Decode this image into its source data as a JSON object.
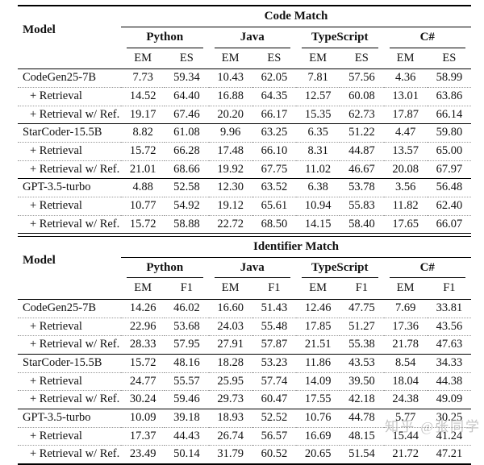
{
  "page": {
    "background": "#ffffff",
    "text_color": "#111111",
    "rule_color": "#000000",
    "dotted_rule_color": "#9a9a9a",
    "watermark_color": "#bcbcbc"
  },
  "watermark": "知乎 @张同学",
  "tables": [
    {
      "id": "code-match",
      "title": "Code Match",
      "model_header": "Model",
      "languages": [
        "Python",
        "Java",
        "TypeScript",
        "C#"
      ],
      "metrics": [
        "EM",
        "ES"
      ],
      "groups": [
        {
          "rows": [
            {
              "model": "CodeGen25-7B",
              "values": [
                "7.73",
                "59.34",
                "10.43",
                "62.05",
                "7.81",
                "57.56",
                "4.36",
                "58.99"
              ]
            },
            {
              "model": "+ Retrieval",
              "values": [
                "14.52",
                "64.40",
                "16.88",
                "64.35",
                "12.57",
                "60.08",
                "13.01",
                "63.86"
              ]
            },
            {
              "model": "+ Retrieval w/ Ref.",
              "values": [
                "19.17",
                "67.46",
                "20.20",
                "66.17",
                "15.35",
                "62.73",
                "17.87",
                "66.14"
              ]
            }
          ]
        },
        {
          "rows": [
            {
              "model": "StarCoder-15.5B",
              "values": [
                "8.82",
                "61.08",
                "9.96",
                "63.25",
                "6.35",
                "51.22",
                "4.47",
                "59.80"
              ]
            },
            {
              "model": "+ Retrieval",
              "values": [
                "15.72",
                "66.28",
                "17.48",
                "66.10",
                "8.31",
                "44.87",
                "13.57",
                "65.00"
              ]
            },
            {
              "model": "+ Retrieval w/ Ref.",
              "values": [
                "21.01",
                "68.66",
                "19.92",
                "67.75",
                "11.02",
                "46.67",
                "20.08",
                "67.97"
              ]
            }
          ]
        },
        {
          "rows": [
            {
              "model": "GPT-3.5-turbo",
              "values": [
                "4.88",
                "52.58",
                "12.30",
                "63.52",
                "6.38",
                "53.78",
                "3.56",
                "56.48"
              ]
            },
            {
              "model": "+ Retrieval",
              "values": [
                "10.77",
                "54.92",
                "19.12",
                "65.61",
                "10.94",
                "55.83",
                "11.82",
                "62.40"
              ]
            },
            {
              "model": "+ Retrieval w/ Ref.",
              "values": [
                "15.72",
                "58.88",
                "22.72",
                "68.50",
                "14.15",
                "58.40",
                "17.65",
                "66.07"
              ]
            }
          ]
        }
      ]
    },
    {
      "id": "identifier-match",
      "title": "Identifier Match",
      "model_header": "Model",
      "languages": [
        "Python",
        "Java",
        "TypeScript",
        "C#"
      ],
      "metrics": [
        "EM",
        "F1"
      ],
      "groups": [
        {
          "rows": [
            {
              "model": "CodeGen25-7B",
              "values": [
                "14.26",
                "46.02",
                "16.60",
                "51.43",
                "12.46",
                "47.75",
                "7.69",
                "33.81"
              ]
            },
            {
              "model": "+ Retrieval",
              "values": [
                "22.96",
                "53.68",
                "24.03",
                "55.48",
                "17.85",
                "51.27",
                "17.36",
                "43.56"
              ]
            },
            {
              "model": "+ Retrieval w/ Ref.",
              "values": [
                "28.33",
                "57.95",
                "27.91",
                "57.87",
                "21.51",
                "55.38",
                "21.78",
                "47.63"
              ]
            }
          ]
        },
        {
          "rows": [
            {
              "model": "StarCoder-15.5B",
              "values": [
                "15.72",
                "48.16",
                "18.28",
                "53.23",
                "11.86",
                "43.53",
                "8.54",
                "34.33"
              ]
            },
            {
              "model": "+ Retrieval",
              "values": [
                "24.77",
                "55.57",
                "25.95",
                "57.74",
                "14.09",
                "39.50",
                "18.04",
                "44.38"
              ]
            },
            {
              "model": "+ Retrieval w/ Ref.",
              "values": [
                "30.24",
                "59.46",
                "29.73",
                "60.47",
                "17.55",
                "42.18",
                "24.38",
                "49.09"
              ]
            }
          ]
        },
        {
          "rows": [
            {
              "model": "GPT-3.5-turbo",
              "values": [
                "10.09",
                "39.18",
                "18.93",
                "52.52",
                "10.76",
                "44.78",
                "5.77",
                "30.25"
              ]
            },
            {
              "model": "+ Retrieval",
              "values": [
                "17.37",
                "44.43",
                "26.74",
                "56.57",
                "16.69",
                "48.15",
                "15.44",
                "41.24"
              ]
            },
            {
              "model": "+ Retrieval w/ Ref.",
              "values": [
                "23.49",
                "50.14",
                "31.79",
                "60.52",
                "20.65",
                "51.54",
                "21.72",
                "47.21"
              ]
            }
          ]
        }
      ]
    }
  ]
}
